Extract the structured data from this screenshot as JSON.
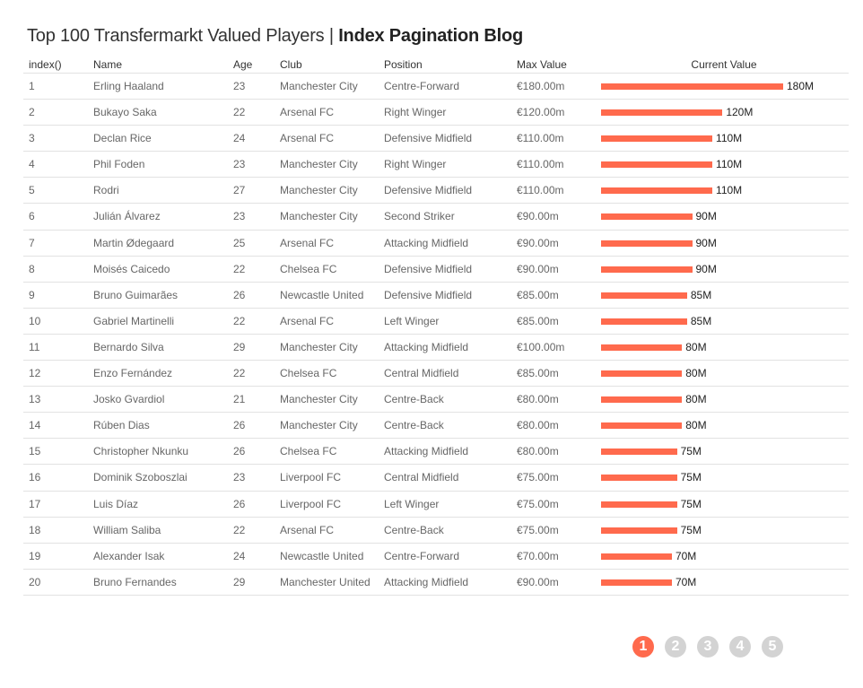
{
  "title": {
    "main": "Top 100 Transfermarkt Valued Players",
    "separator": "|",
    "bold": "Index Pagination Blog"
  },
  "colors": {
    "bar": "#ff6a4d",
    "page_active": "#ff6a4d",
    "page_inactive": "#d3d3d3"
  },
  "chart_data": {
    "type": "table",
    "columns": [
      "index()",
      "Name",
      "Age",
      "Club",
      "Position",
      "Max Value",
      "Current Value"
    ],
    "rows": [
      [
        "1",
        "Erling Haaland",
        "23",
        "Manchester City",
        "Centre-Forward",
        "€180.00m",
        180,
        "180M"
      ],
      [
        "2",
        "Bukayo Saka",
        "22",
        "Arsenal FC",
        "Right Winger",
        "€120.00m",
        120,
        "120M"
      ],
      [
        "3",
        "Declan Rice",
        "24",
        "Arsenal FC",
        "Defensive Midfield",
        "€110.00m",
        110,
        "110M"
      ],
      [
        "4",
        "Phil Foden",
        "23",
        "Manchester City",
        "Right Winger",
        "€110.00m",
        110,
        "110M"
      ],
      [
        "5",
        "Rodri",
        "27",
        "Manchester City",
        "Defensive Midfield",
        "€110.00m",
        110,
        "110M"
      ],
      [
        "6",
        "Julián Álvarez",
        "23",
        "Manchester City",
        "Second Striker",
        "€90.00m",
        90,
        "90M"
      ],
      [
        "7",
        "Martin Ødegaard",
        "25",
        "Arsenal FC",
        "Attacking Midfield",
        "€90.00m",
        90,
        "90M"
      ],
      [
        "8",
        "Moisés Caicedo",
        "22",
        "Chelsea FC",
        "Defensive Midfield",
        "€90.00m",
        90,
        "90M"
      ],
      [
        "9",
        "Bruno Guimarães",
        "26",
        "Newcastle United",
        "Defensive Midfield",
        "€85.00m",
        85,
        "85M"
      ],
      [
        "10",
        "Gabriel Martinelli",
        "22",
        "Arsenal FC",
        "Left Winger",
        "€85.00m",
        85,
        "85M"
      ],
      [
        "11",
        "Bernardo Silva",
        "29",
        "Manchester City",
        "Attacking Midfield",
        "€100.00m",
        80,
        "80M"
      ],
      [
        "12",
        "Enzo Fernández",
        "22",
        "Chelsea FC",
        "Central Midfield",
        "€85.00m",
        80,
        "80M"
      ],
      [
        "13",
        "Josko Gvardiol",
        "21",
        "Manchester City",
        "Centre-Back",
        "€80.00m",
        80,
        "80M"
      ],
      [
        "14",
        "Rúben Dias",
        "26",
        "Manchester City",
        "Centre-Back",
        "€80.00m",
        80,
        "80M"
      ],
      [
        "15",
        "Christopher Nkunku",
        "26",
        "Chelsea FC",
        "Attacking Midfield",
        "€80.00m",
        75,
        "75M"
      ],
      [
        "16",
        "Dominik Szoboszlai",
        "23",
        "Liverpool FC",
        "Central Midfield",
        "€75.00m",
        75,
        "75M"
      ],
      [
        "17",
        "Luis Díaz",
        "26",
        "Liverpool FC",
        "Left Winger",
        "€75.00m",
        75,
        "75M"
      ],
      [
        "18",
        "William Saliba",
        "22",
        "Arsenal FC",
        "Centre-Back",
        "€75.00m",
        75,
        "75M"
      ],
      [
        "19",
        "Alexander Isak",
        "24",
        "Newcastle United",
        "Centre-Forward",
        "€70.00m",
        70,
        "70M"
      ],
      [
        "20",
        "Bruno Fernandes",
        "29",
        "Manchester United",
        "Attacking Midfield",
        "€90.00m",
        70,
        "70M"
      ]
    ]
  },
  "pagination": {
    "pages": [
      "1",
      "2",
      "3",
      "4",
      "5"
    ],
    "active": "1"
  }
}
